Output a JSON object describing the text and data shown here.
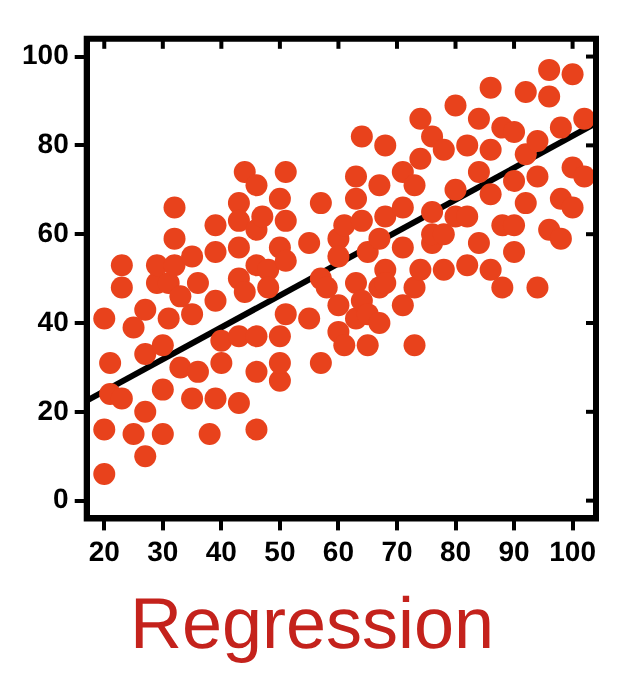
{
  "chart_data": {
    "type": "scatter",
    "title": "Regression",
    "xlim": [
      17,
      104
    ],
    "ylim": [
      -4,
      104
    ],
    "xticks": [
      20,
      30,
      40,
      50,
      60,
      70,
      80,
      90,
      100
    ],
    "yticks": [
      0,
      20,
      40,
      60,
      80,
      100
    ],
    "grid": false,
    "legend": false,
    "marker": "circle",
    "series": [
      {
        "color": "#e8421c",
        "x": [
          20,
          20,
          20,
          21,
          21,
          23,
          23,
          23,
          25,
          25,
          27,
          27,
          27,
          27,
          29,
          29,
          30,
          30,
          30,
          31,
          31,
          32,
          32,
          32,
          33,
          33,
          35,
          35,
          35,
          36,
          36,
          38,
          39,
          39,
          39,
          39,
          40,
          40,
          43,
          43,
          43,
          43,
          43,
          43,
          44,
          44,
          46,
          46,
          46,
          46,
          46,
          46,
          47,
          48,
          48,
          50,
          50,
          50,
          50,
          50,
          51,
          51,
          51,
          51,
          55,
          55,
          57,
          57,
          57,
          58,
          60,
          60,
          60,
          60,
          61,
          61,
          63,
          63,
          63,
          63,
          64,
          64,
          64,
          65,
          65,
          65,
          67,
          67,
          67,
          67,
          68,
          68,
          68,
          68,
          71,
          71,
          71,
          71,
          73,
          73,
          73,
          74,
          74,
          74,
          76,
          76,
          76,
          76,
          78,
          78,
          78,
          80,
          80,
          80,
          82,
          82,
          82,
          84,
          84,
          84,
          86,
          86,
          86,
          86,
          88,
          88,
          88,
          90,
          90,
          90,
          90,
          92,
          92,
          92,
          94,
          94,
          94,
          96,
          96,
          96,
          98,
          98,
          98,
          100,
          100,
          100,
          102,
          102
        ],
        "values": [
          41,
          16,
          6,
          31,
          24,
          53,
          48,
          23,
          39,
          15,
          20,
          10,
          33,
          43,
          49,
          53,
          25,
          35,
          15,
          49,
          41,
          66,
          59,
          53,
          46,
          30,
          55,
          42,
          23,
          49,
          29,
          15,
          62,
          56,
          45,
          23,
          36,
          31,
          67,
          63,
          57,
          50,
          37,
          22,
          74,
          47,
          71,
          61,
          53,
          16,
          29,
          37,
          64,
          52,
          48,
          68,
          57,
          27,
          37,
          31,
          74,
          63,
          54,
          42,
          58,
          41,
          67,
          50,
          31,
          48,
          59,
          55,
          44,
          38,
          62,
          35,
          73,
          68,
          49,
          41,
          82,
          63,
          45,
          56,
          35,
          42,
          71,
          59,
          48,
          40,
          80,
          64,
          52,
          49,
          74,
          66,
          57,
          44,
          71,
          48,
          35,
          86,
          77,
          52,
          82,
          65,
          58,
          60,
          79,
          60,
          52,
          89,
          70,
          64,
          80,
          64,
          53,
          86,
          74,
          58,
          93,
          79,
          69,
          52,
          84,
          62,
          48,
          83,
          72,
          62,
          56,
          92,
          78,
          67,
          81,
          73,
          48,
          97,
          91,
          61,
          84,
          68,
          59,
          96,
          75,
          66,
          86,
          73
        ]
      },
      {
        "type": "line",
        "color": "#000000",
        "marker": "none",
        "x": [
          17,
          104
        ],
        "values": [
          22.5,
          85
        ]
      }
    ]
  }
}
